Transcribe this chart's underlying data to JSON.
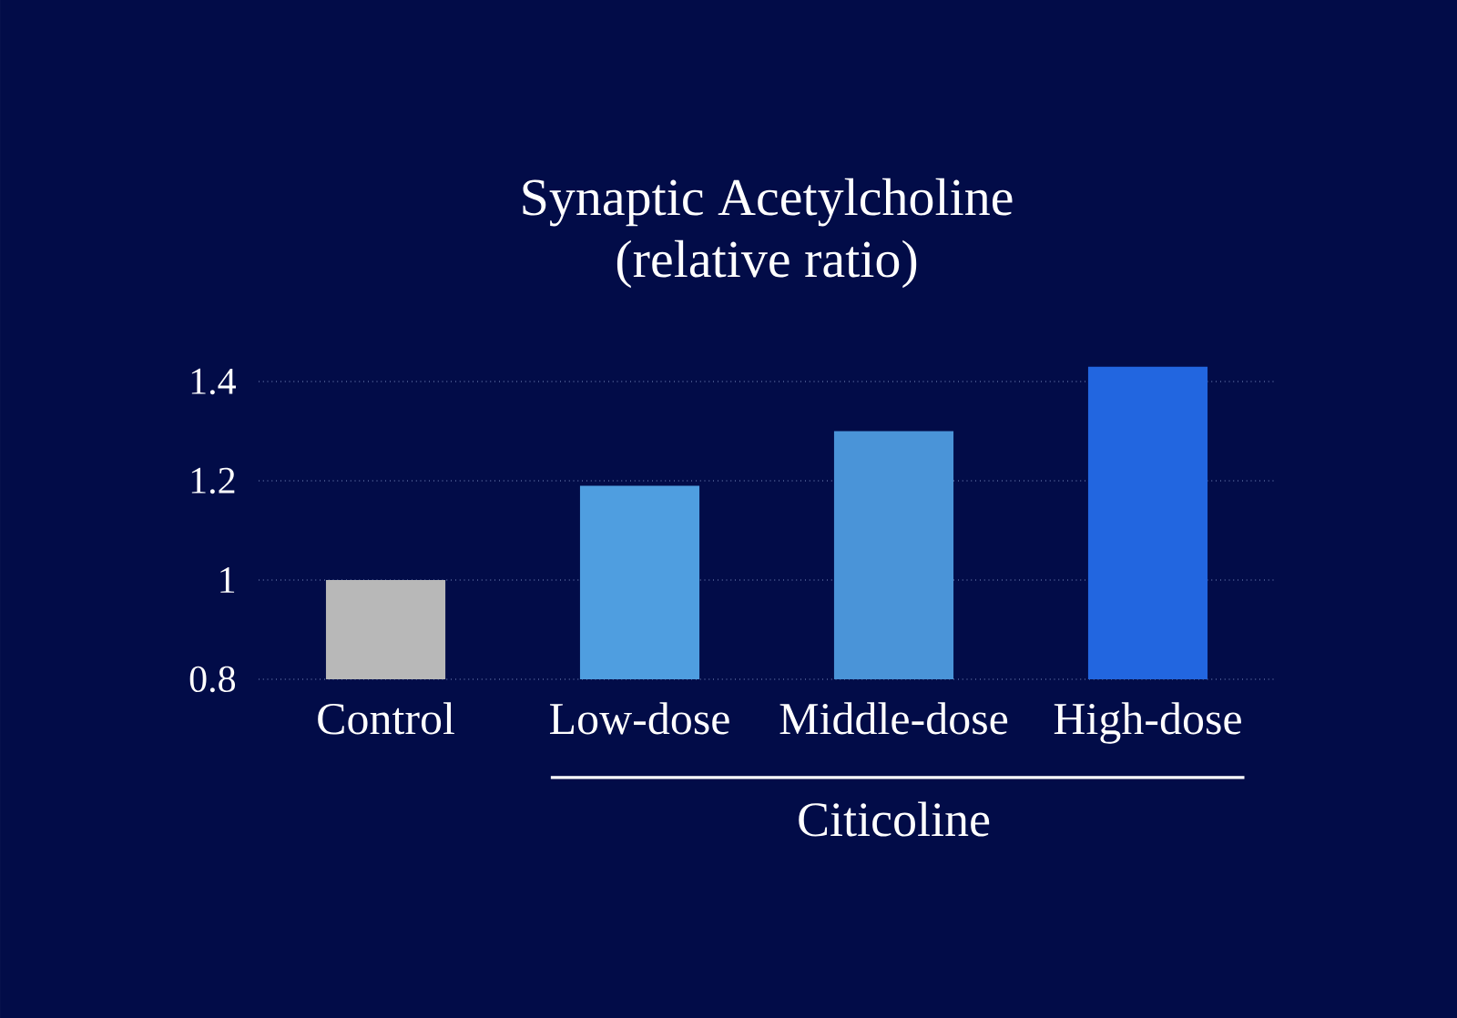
{
  "chart_data": {
    "type": "bar",
    "title": "Synaptic Acetylcholine",
    "subtitle": "(relative ratio)",
    "categories": [
      "Control",
      "Low-dose",
      "Middle-dose",
      "High-dose"
    ],
    "values": [
      1.0,
      1.19,
      1.3,
      1.43
    ],
    "colors": [
      "#b8b8b8",
      "#4f9ee0",
      "#4a94d8",
      "#2266e0"
    ],
    "ylim": [
      0.8,
      1.43
    ],
    "yticks": [
      0.8,
      1,
      1.2,
      1.4
    ],
    "grid": "y",
    "annotations": [
      "Citicoline"
    ]
  }
}
